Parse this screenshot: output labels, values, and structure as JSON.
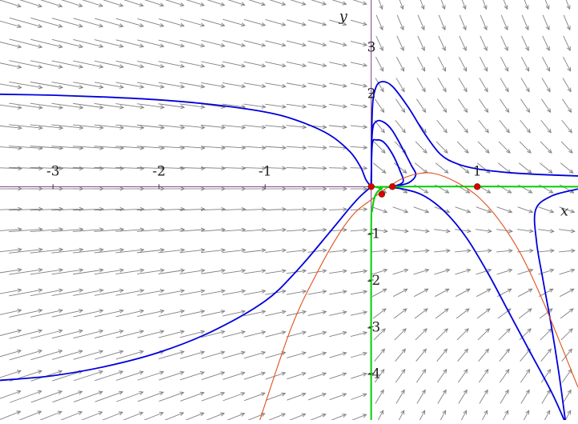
{
  "chart_data": {
    "type": "line",
    "title": "",
    "xlabel": "x",
    "ylabel": "y",
    "xlim": [
      -3.5,
      1.95
    ],
    "ylim": [
      -5.0,
      4.0
    ],
    "x_ticks": [
      {
        "value": -3,
        "label": "-3"
      },
      {
        "value": -2,
        "label": "-2"
      },
      {
        "value": -1,
        "label": "-1"
      },
      {
        "value": 1,
        "label": "1"
      }
    ],
    "y_ticks": [
      {
        "value": 3,
        "label": "3"
      },
      {
        "value": 2,
        "label": "2"
      },
      {
        "value": -1,
        "label": "-1"
      },
      {
        "value": -2,
        "label": "-2"
      },
      {
        "value": -3,
        "label": "-3"
      },
      {
        "value": -4,
        "label": "-4"
      }
    ],
    "grid": false,
    "direction_field": true,
    "colors": {
      "trajectory": "#0000dd",
      "nullcline": "#e0501a",
      "green_curve": "#00d000",
      "point": "#dd0000",
      "axis": "#7a3d8a",
      "arrow": "#808080"
    },
    "series": [
      {
        "color": "#0000dd",
        "points": [
          [
            -3.5,
            1.98
          ],
          [
            -3.0,
            1.96
          ],
          [
            -2.5,
            1.92
          ],
          [
            -2.0,
            1.86
          ],
          [
            -1.5,
            1.76
          ],
          [
            -1.0,
            1.6
          ],
          [
            -0.7,
            1.42
          ],
          [
            -0.4,
            1.12
          ],
          [
            -0.2,
            0.75
          ],
          [
            -0.1,
            0.42
          ],
          [
            -0.05,
            0.15
          ],
          [
            0,
            0
          ]
        ]
      },
      {
        "color": "#0000dd",
        "points": [
          [
            -3.5,
            -4.15
          ],
          [
            -3.0,
            -4.05
          ],
          [
            -2.5,
            -3.85
          ],
          [
            -2.0,
            -3.55
          ],
          [
            -1.5,
            -3.1
          ],
          [
            -1.0,
            -2.45
          ],
          [
            -0.7,
            -1.8
          ],
          [
            -0.4,
            -1.0
          ],
          [
            -0.2,
            -0.45
          ],
          [
            -0.1,
            -0.2
          ],
          [
            0,
            0
          ]
        ]
      },
      {
        "color": "#0000dd",
        "points": [
          [
            0.0,
            0.0
          ],
          [
            0.01,
            1.6
          ],
          [
            0.04,
            2.1
          ],
          [
            0.1,
            2.25
          ],
          [
            0.2,
            2.15
          ],
          [
            0.35,
            1.7
          ],
          [
            0.5,
            1.15
          ],
          [
            0.65,
            0.7
          ],
          [
            0.8,
            0.5
          ],
          [
            1.0,
            0.38
          ],
          [
            1.3,
            0.3
          ],
          [
            1.6,
            0.26
          ],
          [
            1.95,
            0.23
          ]
        ]
      },
      {
        "color": "#0000dd",
        "points": [
          [
            0.0,
            0.0
          ],
          [
            0.01,
            1.15
          ],
          [
            0.05,
            1.4
          ],
          [
            0.12,
            1.38
          ],
          [
            0.2,
            1.2
          ],
          [
            0.3,
            0.8
          ],
          [
            0.38,
            0.45
          ],
          [
            0.42,
            0.25
          ],
          [
            0.35,
            0.08
          ],
          [
            0.2,
            0.0
          ]
        ]
      },
      {
        "color": "#0000dd",
        "points": [
          [
            0.0,
            0.0
          ],
          [
            0.01,
            0.9
          ],
          [
            0.05,
            1.0
          ],
          [
            0.12,
            0.95
          ],
          [
            0.2,
            0.7
          ],
          [
            0.27,
            0.35
          ],
          [
            0.3,
            0.1
          ],
          [
            0.2,
            0.0
          ]
        ]
      },
      {
        "color": "#0000dd",
        "points": [
          [
            0.1,
            0.0
          ],
          [
            0.3,
            -0.05
          ],
          [
            0.5,
            -0.2
          ],
          [
            0.7,
            -0.55
          ],
          [
            0.9,
            -1.1
          ],
          [
            1.1,
            -1.85
          ],
          [
            1.3,
            -2.7
          ],
          [
            1.5,
            -3.55
          ],
          [
            1.7,
            -4.4
          ],
          [
            1.82,
            -5.0
          ]
        ]
      },
      {
        "color": "#0000dd",
        "points": [
          [
            1.95,
            -0.05
          ],
          [
            1.7,
            -0.2
          ],
          [
            1.55,
            -0.5
          ],
          [
            1.56,
            -1.2
          ],
          [
            1.62,
            -2.0
          ],
          [
            1.7,
            -3.0
          ],
          [
            1.77,
            -4.0
          ],
          [
            1.83,
            -5.0
          ]
        ]
      },
      {
        "color": "#e0501a",
        "points": [
          [
            -1.05,
            -5.0
          ],
          [
            -0.75,
            -3.0
          ],
          [
            -0.5,
            -1.8
          ],
          [
            -0.3,
            -1.0
          ],
          [
            -0.15,
            -0.55
          ],
          [
            0.0,
            -0.28
          ],
          [
            0.1,
            -0.1
          ],
          [
            0.2,
            0.05
          ],
          [
            0.3,
            0.18
          ],
          [
            0.45,
            0.28
          ],
          [
            0.6,
            0.28
          ],
          [
            0.8,
            0.1
          ],
          [
            1.0,
            -0.2
          ],
          [
            1.2,
            -0.7
          ],
          [
            1.4,
            -1.4
          ],
          [
            1.6,
            -2.35
          ],
          [
            1.8,
            -3.45
          ],
          [
            1.95,
            -4.3
          ]
        ]
      },
      {
        "color": "#00d000",
        "points": [
          [
            0.0,
            -5.0
          ],
          [
            0.0,
            -1.0
          ],
          [
            0.01,
            -0.5
          ],
          [
            0.04,
            -0.18
          ],
          [
            0.1,
            -0.04
          ],
          [
            0.2,
            0.0
          ],
          [
            1.95,
            0.0
          ]
        ]
      }
    ],
    "equilibrium_points": [
      [
        0.0,
        0.0
      ],
      [
        0.2,
        0.0
      ],
      [
        1.0,
        0.0
      ],
      [
        0.1,
        -0.16
      ]
    ]
  }
}
